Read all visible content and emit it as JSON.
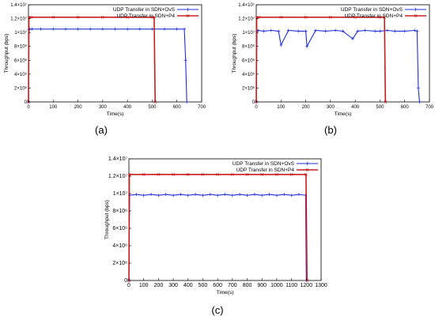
{
  "chart_data": [
    {
      "panel": "(a)",
      "type": "line",
      "xlabel": "Time(s)",
      "ylabel": "Throughput (bps)",
      "xlim": [
        0,
        700
      ],
      "ylim": [
        0,
        14000000
      ],
      "x_ticks": [
        0,
        100,
        200,
        300,
        400,
        500,
        600,
        700
      ],
      "y_ticks": [
        0,
        2000000,
        4000000,
        6000000,
        8000000,
        10000000,
        12000000,
        14000000
      ],
      "y_tick_labels": [
        "0",
        "2×10⁶",
        "4×10⁶",
        "6×10⁶",
        "8×10⁶",
        "1×10⁷",
        "1.2×10⁷",
        "1.4×10⁷"
      ],
      "grid": false,
      "legend_position": "top-right",
      "series": [
        {
          "name": "UDP Transfer in SDN+OvS",
          "color": "#1f2fd8",
          "marker": "plus",
          "x": [
            0,
            2,
            5,
            15,
            50,
            100,
            150,
            200,
            250,
            300,
            350,
            400,
            450,
            500,
            550,
            600,
            630,
            635,
            640
          ],
          "y": [
            0,
            10400000,
            10500000,
            10500000,
            10500000,
            10500000,
            10500000,
            10500000,
            10500000,
            10500000,
            10500000,
            10500000,
            10500000,
            10500000,
            10500000,
            10500000,
            10500000,
            6000000,
            0
          ]
        },
        {
          "name": "UDP Transfer in SDN+P4",
          "color": "#c81e1e",
          "marker": "x",
          "x": [
            0,
            2,
            10,
            100,
            200,
            300,
            400,
            500,
            508,
            512
          ],
          "y": [
            0,
            12200000,
            12200000,
            12200000,
            12200000,
            12200000,
            12200000,
            12200000,
            12200000,
            0
          ]
        }
      ]
    },
    {
      "panel": "(b)",
      "type": "line",
      "xlabel": "Time(s)",
      "ylabel": "Throughput (bps)",
      "xlim": [
        0,
        700
      ],
      "ylim": [
        0,
        14000000
      ],
      "x_ticks": [
        0,
        100,
        200,
        300,
        400,
        500,
        600,
        700
      ],
      "y_ticks": [
        0,
        2000000,
        4000000,
        6000000,
        8000000,
        10000000,
        12000000,
        14000000
      ],
      "y_tick_labels": [
        "0",
        "2×10⁶",
        "4×10⁶",
        "6×10⁶",
        "8×10⁶",
        "1×10⁷",
        "1.2×10⁷",
        "1.4×10⁷"
      ],
      "grid": false,
      "legend_position": "top-right",
      "series": [
        {
          "name": "UDP Transfer in SDN+OvS",
          "color": "#1f2fd8",
          "marker": "plus",
          "x": [
            0,
            3,
            8,
            30,
            60,
            90,
            100,
            130,
            170,
            200,
            205,
            240,
            280,
            320,
            350,
            390,
            410,
            440,
            480,
            500,
            530,
            560,
            600,
            640,
            650,
            655,
            660
          ],
          "y": [
            0,
            10200000,
            10300000,
            10200000,
            10300000,
            10200000,
            8200000,
            10300000,
            10200000,
            10200000,
            8000000,
            10300000,
            10200000,
            10300000,
            10200000,
            9100000,
            10200000,
            10300000,
            10200000,
            10200000,
            10300000,
            10200000,
            10200000,
            10300000,
            10200000,
            2000000,
            0
          ]
        },
        {
          "name": "UDP Transfer in SDN+P4",
          "color": "#c81e1e",
          "marker": "x",
          "x": [
            0,
            2,
            10,
            100,
            200,
            300,
            400,
            500,
            518,
            522
          ],
          "y": [
            0,
            12200000,
            12200000,
            12200000,
            12200000,
            12200000,
            12200000,
            12200000,
            12200000,
            0
          ]
        }
      ]
    },
    {
      "panel": "(c)",
      "type": "line",
      "xlabel": "Time(s)",
      "ylabel": "Throughput (bps)",
      "xlim": [
        0,
        1300
      ],
      "ylim": [
        0,
        14000000
      ],
      "x_ticks": [
        0,
        100,
        200,
        300,
        400,
        500,
        600,
        700,
        800,
        900,
        1000,
        1100,
        1200,
        1300
      ],
      "y_ticks": [
        0,
        2000000,
        4000000,
        6000000,
        8000000,
        10000000,
        12000000,
        14000000
      ],
      "y_tick_labels": [
        "0",
        "2×10⁶",
        "4×10⁶",
        "6×10⁶",
        "8×10⁶",
        "1×10⁷",
        "1.2×10⁷",
        "1.4×10⁷"
      ],
      "grid": false,
      "legend_position": "top-right",
      "series": [
        {
          "name": "UDP Transfer in SDN+OvS",
          "color": "#1f2fd8",
          "marker": "plus",
          "x": [
            0,
            5,
            50,
            100,
            150,
            200,
            250,
            300,
            350,
            400,
            450,
            500,
            550,
            600,
            650,
            700,
            750,
            800,
            850,
            900,
            950,
            1000,
            1050,
            1100,
            1150,
            1195,
            1200
          ],
          "y": [
            0,
            9800000,
            9900000,
            9800000,
            9900000,
            9800000,
            9900000,
            9800000,
            9900000,
            9800000,
            9900000,
            9800000,
            9900000,
            9800000,
            9900000,
            9800000,
            9900000,
            9800000,
            9900000,
            9800000,
            9900000,
            9800000,
            9900000,
            9800000,
            9900000,
            9800000,
            0
          ]
        },
        {
          "name": "UDP Transfer in SDN+P4",
          "color": "#c81e1e",
          "marker": "x",
          "x": [
            0,
            3,
            100,
            200,
            300,
            400,
            500,
            600,
            700,
            800,
            900,
            1000,
            1100,
            1198,
            1205
          ],
          "y": [
            0,
            12200000,
            12200000,
            12200000,
            12200000,
            12200000,
            12200000,
            12200000,
            12200000,
            12200000,
            12200000,
            12200000,
            12200000,
            12200000,
            0
          ]
        }
      ]
    }
  ]
}
